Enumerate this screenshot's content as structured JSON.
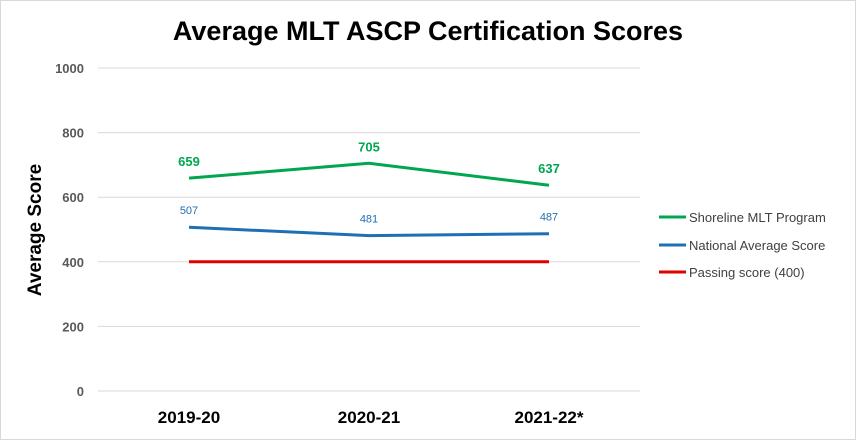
{
  "chart_data": {
    "type": "line",
    "title": "Average MLT ASCP Certification Scores",
    "xlabel": "",
    "ylabel": "Average Score",
    "categories": [
      "2019-20",
      "2020-21",
      "2021-22*"
    ],
    "ylim": [
      0,
      1000
    ],
    "yticks": [
      "0",
      "200",
      "400",
      "600",
      "800",
      "1000"
    ],
    "grid": true,
    "legend_position": "right",
    "series": [
      {
        "name": "Shoreline MLT Program",
        "values": [
          659,
          705,
          637
        ],
        "color": "#00a650",
        "labels": [
          "659",
          "705",
          "637"
        ],
        "label_style": "bold"
      },
      {
        "name": "National Average Score",
        "values": [
          507,
          481,
          487
        ],
        "color": "#1f6fb4",
        "labels": [
          "507",
          "481",
          "487"
        ],
        "label_style": "normal"
      },
      {
        "name": "Passing score (400)",
        "values": [
          400,
          400,
          400
        ],
        "color": "#e00000",
        "labels": [],
        "label_style": "none"
      }
    ]
  }
}
